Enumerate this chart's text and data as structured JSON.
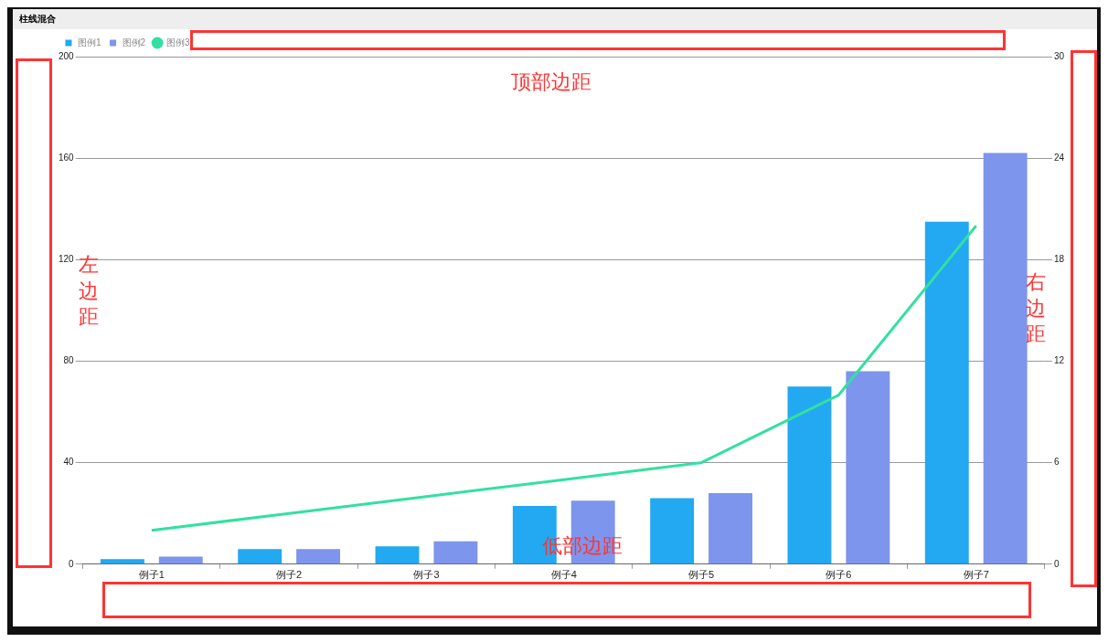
{
  "chart_data": {
    "type": "bar",
    "title": "柱线混合",
    "categories": [
      "例子1",
      "例子2",
      "例子3",
      "例子4",
      "例子5",
      "例子6",
      "例子7"
    ],
    "series": [
      {
        "name": "图例1",
        "color": "#23a8f2",
        "values": [
          2,
          6,
          7,
          23,
          26,
          70,
          135
        ]
      },
      {
        "name": "图例2",
        "color": "#7d95ec",
        "values": [
          3,
          6,
          9,
          25,
          28,
          76,
          162
        ]
      },
      {
        "name": "图例3",
        "type": "line",
        "axis": "y2",
        "color": "#33e0a1",
        "values": [
          2,
          3,
          4,
          5,
          6,
          10,
          20
        ]
      }
    ],
    "ylim": [
      0,
      200
    ],
    "yticks": [
      0,
      40,
      80,
      120,
      160,
      200
    ],
    "y2lim": [
      0,
      30
    ],
    "y2ticks": [
      0,
      6,
      12,
      18,
      24,
      30
    ],
    "grid": "y",
    "legend": "top left",
    "annotations": [
      "顶部边距",
      "左边距",
      "右边距",
      "低部边距"
    ]
  }
}
